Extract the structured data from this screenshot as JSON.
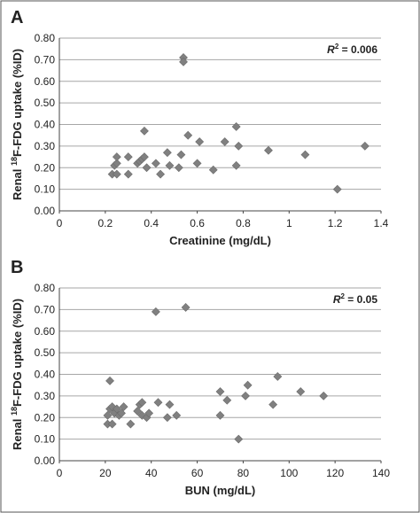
{
  "chart_data": [
    {
      "panel": "A",
      "type": "scatter",
      "xlabel": "Creatinine (mg/dL)",
      "ylabel_parts": {
        "pre": "Renal ",
        "sup": "18",
        "post": "F-FDG uptake (%ID)"
      },
      "annotation": {
        "label": "R",
        "sup": "2",
        "value": " = 0.006"
      },
      "xlim": [
        0,
        1.4
      ],
      "ylim": [
        0,
        0.8
      ],
      "xticks": [
        "0",
        "0.2",
        "0.4",
        "0.6",
        "0.8",
        "1",
        "1.2",
        "1.4"
      ],
      "yticks": [
        "0.00",
        "0.10",
        "0.20",
        "0.30",
        "0.40",
        "0.50",
        "0.60",
        "0.70",
        "0.80"
      ],
      "grid": "horizontal",
      "marker_color": "#808080",
      "points": [
        [
          0.23,
          0.17
        ],
        [
          0.24,
          0.21
        ],
        [
          0.25,
          0.22
        ],
        [
          0.25,
          0.17
        ],
        [
          0.25,
          0.25
        ],
        [
          0.3,
          0.25
        ],
        [
          0.3,
          0.17
        ],
        [
          0.34,
          0.22
        ],
        [
          0.35,
          0.23
        ],
        [
          0.36,
          0.24
        ],
        [
          0.37,
          0.25
        ],
        [
          0.37,
          0.37
        ],
        [
          0.38,
          0.2
        ],
        [
          0.42,
          0.22
        ],
        [
          0.44,
          0.17
        ],
        [
          0.47,
          0.27
        ],
        [
          0.48,
          0.21
        ],
        [
          0.52,
          0.2
        ],
        [
          0.53,
          0.26
        ],
        [
          0.54,
          0.71
        ],
        [
          0.54,
          0.69
        ],
        [
          0.56,
          0.35
        ],
        [
          0.6,
          0.22
        ],
        [
          0.61,
          0.32
        ],
        [
          0.67,
          0.19
        ],
        [
          0.72,
          0.32
        ],
        [
          0.77,
          0.39
        ],
        [
          0.77,
          0.21
        ],
        [
          0.78,
          0.3
        ],
        [
          0.91,
          0.28
        ],
        [
          1.07,
          0.26
        ],
        [
          1.21,
          0.1
        ],
        [
          1.33,
          0.3
        ]
      ]
    },
    {
      "panel": "B",
      "type": "scatter",
      "xlabel": "BUN (mg/dL)",
      "ylabel_parts": {
        "pre": "Renal ",
        "sup": "18",
        "post": "F-FDG uptake (%ID)"
      },
      "annotation": {
        "label": "R",
        "sup": "2",
        "value": " = 0.05"
      },
      "xlim": [
        0,
        140
      ],
      "ylim": [
        0,
        0.8
      ],
      "xticks": [
        "0",
        "20",
        "40",
        "60",
        "80",
        "100",
        "120",
        "140"
      ],
      "yticks": [
        "0.00",
        "0.10",
        "0.20",
        "0.30",
        "0.40",
        "0.50",
        "0.60",
        "0.70",
        "0.80"
      ],
      "grid": "horizontal",
      "marker_color": "#808080",
      "points": [
        [
          21,
          0.21
        ],
        [
          21,
          0.17
        ],
        [
          22,
          0.24
        ],
        [
          22,
          0.37
        ],
        [
          23,
          0.17
        ],
        [
          23,
          0.25
        ],
        [
          24,
          0.22
        ],
        [
          25,
          0.24
        ],
        [
          26,
          0.21
        ],
        [
          27,
          0.22
        ],
        [
          28,
          0.25
        ],
        [
          31,
          0.17
        ],
        [
          34,
          0.23
        ],
        [
          35,
          0.26
        ],
        [
          36,
          0.21
        ],
        [
          36,
          0.27
        ],
        [
          38,
          0.2
        ],
        [
          39,
          0.22
        ],
        [
          42,
          0.69
        ],
        [
          43,
          0.27
        ],
        [
          47,
          0.2
        ],
        [
          48,
          0.26
        ],
        [
          51,
          0.21
        ],
        [
          55,
          0.71
        ],
        [
          70,
          0.21
        ],
        [
          70,
          0.32
        ],
        [
          73,
          0.28
        ],
        [
          78,
          0.1
        ],
        [
          81,
          0.3
        ],
        [
          82,
          0.35
        ],
        [
          93,
          0.26
        ],
        [
          95,
          0.39
        ],
        [
          105,
          0.32
        ],
        [
          115,
          0.3
        ]
      ]
    }
  ]
}
